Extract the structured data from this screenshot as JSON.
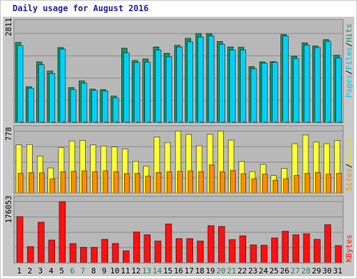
{
  "chart_data": {
    "type": "bar",
    "title": "Daily usage for August 2016",
    "categories": [
      "1",
      "2",
      "3",
      "4",
      "5",
      "6",
      "7",
      "8",
      "9",
      "10",
      "11",
      "12",
      "13",
      "14",
      "15",
      "16",
      "17",
      "18",
      "19",
      "20",
      "21",
      "22",
      "23",
      "24",
      "25",
      "26",
      "27",
      "28",
      "29",
      "30",
      "31"
    ],
    "weekend_days": [
      "6",
      "7",
      "13",
      "14",
      "20",
      "21",
      "27",
      "28"
    ],
    "colors": {
      "hits": "#1f8f5f",
      "files": "#00d0f8",
      "pages": "#2646c8",
      "visits": "#ffff33",
      "sites": "#ff8c00",
      "kbytes": "#ff1010",
      "weekday_label": "#000000",
      "weekend_label": "#2e7d4f",
      "panel_bg": "#b8b8b8",
      "grid": "#8a8a8a",
      "frame": "#a8a8a8"
    },
    "panels": [
      {
        "id": "hits-panel",
        "ymax_label": "2811",
        "ymax": 2811,
        "legend": [
          {
            "text": "Pages",
            "color": "#00c8e8"
          },
          {
            "text": "/",
            "color": "#000000"
          },
          {
            "text": "Files",
            "color": "#00b8d8"
          },
          {
            "text": "/",
            "color": "#000000"
          },
          {
            "text": "Hits",
            "color": "#1f8f5f"
          }
        ],
        "series": [
          {
            "name": "Hits",
            "values": [
              2530,
              1140,
              1920,
              1630,
              2370,
              1110,
              1320,
              1060,
              1050,
              840,
              2350,
              1960,
              2010,
              2390,
              2190,
              2440,
              2660,
              2810,
              2810,
              2560,
              2390,
              2380,
              1770,
              1920,
              1930,
              2780,
              2100,
              2520,
              2420,
              2620,
              2130
            ]
          },
          {
            "name": "Files",
            "values": [
              2430,
              1090,
              1830,
              1550,
              2320,
              1050,
              1250,
              1020,
              1000,
              790,
              2200,
              1900,
              1910,
              2290,
              2080,
              2390,
              2550,
              2700,
              2730,
              2470,
              2290,
              2290,
              1700,
              1880,
              1900,
              2730,
              2020,
              2440,
              2370,
              2570,
              2040
            ]
          },
          {
            "name": "Pages",
            "values": [
              20,
              15,
              18,
              17,
              19,
              14,
              15,
              13,
              14,
              12,
              18,
              16,
              17,
              19,
              18,
              19,
              20,
              21,
              21,
              20,
              19,
              19,
              16,
              17,
              17,
              21,
              18,
              20,
              19,
              20,
              18
            ]
          }
        ]
      },
      {
        "id": "visits-panel",
        "ymax_label": "778",
        "ymax": 778,
        "legend": [
          {
            "text": "Sites",
            "color": "#ff8c00"
          },
          {
            "text": "/",
            "color": "#000000"
          },
          {
            "text": "Visits",
            "color": "#e8e800"
          }
        ],
        "series": [
          {
            "name": "Visits",
            "values": [
              605,
              610,
              465,
              315,
              570,
              655,
              660,
              605,
              590,
              580,
              555,
              400,
              340,
              705,
              635,
              778,
              735,
              595,
              740,
              778,
              665,
              395,
              270,
              360,
              220,
              310,
              620,
              730,
              640,
              620,
              660
            ]
          },
          {
            "name": "Sites",
            "values": [
              250,
              260,
              255,
              180,
              270,
              275,
              280,
              270,
              280,
              270,
              245,
              250,
              215,
              260,
              270,
              275,
              280,
              270,
              355,
              270,
              285,
              245,
              180,
              240,
              165,
              180,
              225,
              250,
              260,
              240,
              250
            ]
          }
        ]
      },
      {
        "id": "kbytes-panel",
        "ymax_label": "176053",
        "ymax": 176053,
        "legend": [
          {
            "text": "KBytes",
            "color": "#ff1010"
          }
        ],
        "series": [
          {
            "name": "KBytes",
            "values": [
              133000,
              47000,
              117000,
              66000,
              176053,
              56000,
              45000,
              45000,
              68000,
              56000,
              35000,
              89000,
              81000,
              63000,
              112000,
              70000,
              70000,
              63000,
              107000,
              105000,
              67000,
              78000,
              52000,
              51000,
              72000,
              91000,
              81000,
              84000,
              68000,
              110000,
              50000
            ]
          }
        ]
      }
    ]
  }
}
